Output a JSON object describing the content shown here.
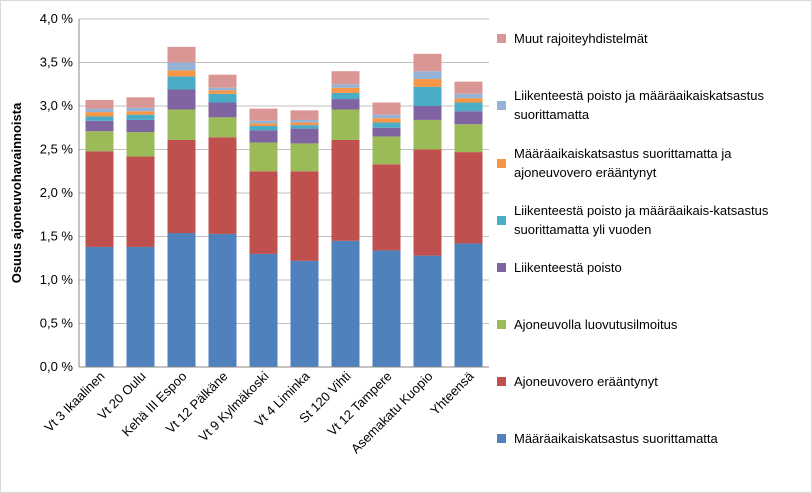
{
  "chart_data": {
    "type": "bar",
    "stacked": true,
    "y_label": "Osuus ajoneuvohavainnoista",
    "categories": [
      "Vt 3 Ikaalinen",
      "Vt 20 Oulu",
      "Kehä III Espoo",
      "Vt 12 Pälkäne",
      "Vt 9 Kylmäkoski",
      "Vt 4 Liminka",
      "St 120 Vihti",
      "Vt 12 Tampere",
      "Asemakatu Kuopio",
      "Yhteensä"
    ],
    "series": [
      {
        "name": "Määräaikaiskatsastus suorittamatta",
        "color": "#4f81bd",
        "values": [
          1.38,
          1.38,
          1.54,
          1.53,
          1.3,
          1.22,
          1.45,
          1.34,
          1.28,
          1.42
        ]
      },
      {
        "name": "Ajoneuvovero erääntynyt",
        "color": "#c0504d",
        "values": [
          1.1,
          1.04,
          1.07,
          1.11,
          0.95,
          1.03,
          1.16,
          0.99,
          1.22,
          1.05
        ]
      },
      {
        "name": "Ajoneuvolla luovutusilmoitus",
        "color": "#9bbb59",
        "values": [
          0.23,
          0.28,
          0.35,
          0.23,
          0.33,
          0.32,
          0.35,
          0.32,
          0.34,
          0.32
        ]
      },
      {
        "name": "Liikenteestä poisto",
        "color": "#8064a2",
        "values": [
          0.12,
          0.14,
          0.23,
          0.17,
          0.14,
          0.17,
          0.12,
          0.1,
          0.16,
          0.15
        ]
      },
      {
        "name": "Liikenteestä poisto ja määräaikais-katsastus suorittamatta yli vuoden",
        "color": "#4bacc6",
        "values": [
          0.05,
          0.06,
          0.15,
          0.1,
          0.05,
          0.04,
          0.07,
          0.06,
          0.22,
          0.1
        ]
      },
      {
        "name": "Määräaikaiskatsastus suorittamatta ja ajoneuvovero erääntynyt",
        "color": "#f79646",
        "values": [
          0.05,
          0.04,
          0.07,
          0.04,
          0.03,
          0.03,
          0.06,
          0.05,
          0.09,
          0.05
        ]
      },
      {
        "name": "Liikenteestä poisto ja määräaikaiskatsastus suorittamatta",
        "color": "#95b3d7",
        "values": [
          0.04,
          0.04,
          0.09,
          0.03,
          0.03,
          0.03,
          0.04,
          0.04,
          0.09,
          0.05
        ]
      },
      {
        "name": "Muut rajoiteyhdistelmät",
        "color": "#d99694",
        "values": [
          0.1,
          0.12,
          0.18,
          0.15,
          0.14,
          0.11,
          0.15,
          0.14,
          0.2,
          0.14
        ]
      }
    ],
    "ylim": [
      0,
      4
    ],
    "yticks": [
      {
        "value": 0,
        "label": "0,0 %"
      },
      {
        "value": 0.5,
        "label": "0,5 %"
      },
      {
        "value": 1,
        "label": "1,0 %"
      },
      {
        "value": 1.5,
        "label": "1,5 %"
      },
      {
        "value": 2,
        "label": "2,0 %"
      },
      {
        "value": 2.5,
        "label": "2,5 %"
      },
      {
        "value": 3,
        "label": "3,0 %"
      },
      {
        "value": 3.5,
        "label": "3,5 %"
      },
      {
        "value": 4,
        "label": "4,0 %"
      }
    ],
    "grid": true,
    "legend": "right"
  }
}
